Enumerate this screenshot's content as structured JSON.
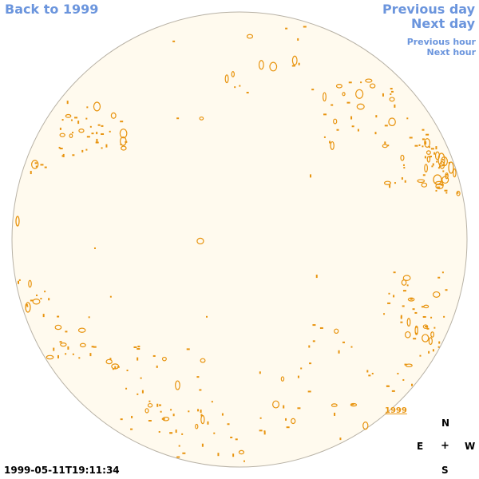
{
  "nav": {
    "back_label": "Back to 1999",
    "previous_day_label": "Previous day",
    "next_day_label": "Next day",
    "previous_hour_label": "Previous hour",
    "next_hour_label": "Next hour"
  },
  "map": {
    "year_tag": "1999",
    "disk_color": "#fffaee",
    "contour_color": "#e8940f",
    "link_color": "#6b95dd"
  },
  "compass": {
    "north": "N",
    "east": "E",
    "center": "+",
    "west": "W",
    "south": "S"
  },
  "timestamp": "1999-05-11T19:11:34"
}
